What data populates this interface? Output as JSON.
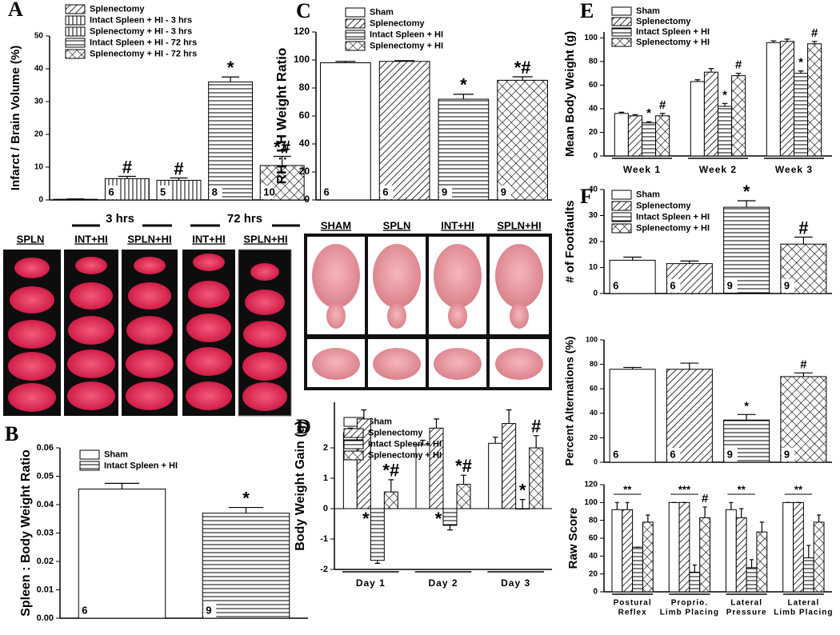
{
  "panel_labels": [
    "A",
    "B",
    "C",
    "D",
    "E",
    "F"
  ],
  "photos": {
    "a_period_labels": [
      "3 hrs",
      "72 hrs"
    ],
    "a_labels": [
      "SPLN",
      "INT+HI",
      "SPLN+HI",
      "INT+HI",
      "SPLN+HI"
    ],
    "c_labels": [
      "SHAM",
      "SPLN",
      "INT+HI",
      "SPLN+HI"
    ]
  },
  "chart_data": [
    {
      "type": "bar",
      "y_label": "Infarct / Brain Volume (%)",
      "ylim": [
        0,
        50
      ],
      "yticks": [
        0,
        10,
        20,
        30,
        40,
        50
      ],
      "legend": true,
      "series": [
        {
          "name": "Splenectomy",
          "color": "#000000",
          "pattern": "diagonal",
          "values": [
            0.2
          ],
          "errors": [
            0.1
          ]
        },
        {
          "name": "Intact Spleen + HI - 3 hrs",
          "color": "#000000",
          "pattern": "vertical",
          "values": [
            6.5
          ],
          "errors": [
            0.7
          ],
          "n_labels": [
            "6"
          ],
          "annotations": [
            "#"
          ]
        },
        {
          "name": "Splenectomy + HI - 3 hrs",
          "color": "#000000",
          "pattern": "vertical",
          "values": [
            6
          ],
          "errors": [
            0.7
          ],
          "n_labels": [
            "5"
          ],
          "annotations": [
            "#"
          ]
        },
        {
          "name": "Intact Spleen + HI - 72 hrs",
          "color": "#000000",
          "pattern": "horizontal",
          "values": [
            36
          ],
          "errors": [
            1.5
          ],
          "n_labels": [
            "8"
          ],
          "annotations": [
            "*"
          ]
        },
        {
          "name": "Splenectomy + HI - 72 hrs",
          "color": "#000000",
          "pattern": "crosshatch",
          "values": [
            10.5
          ],
          "errors": [
            2.8
          ],
          "n_labels": [
            "10"
          ],
          "annotations": [
            "*#"
          ]
        }
      ]
    },
    {
      "type": "bar",
      "y_label": "Spleen : Body Weight Ratio",
      "ylim": [
        0,
        0.06
      ],
      "yticks": [
        {
          "value": 0,
          "label": "0.00"
        },
        {
          "value": 0.01,
          "label": "0.01"
        },
        {
          "value": 0.02,
          "label": "0.02"
        },
        {
          "value": 0.03,
          "label": "0.03"
        },
        {
          "value": 0.04,
          "label": "0.04"
        },
        {
          "value": 0.05,
          "label": "0.05"
        },
        {
          "value": 0.06,
          "label": "0.06"
        }
      ],
      "legend": true,
      "series": [
        {
          "name": "Sham",
          "color": "#000000",
          "pattern": "none",
          "values": [
            0.0455
          ],
          "errors": [
            0.002
          ],
          "n_labels": [
            "6"
          ]
        },
        {
          "name": "Intact Spleen + HI",
          "color": "#000000",
          "pattern": "horizontal",
          "values": [
            0.037
          ],
          "errors": [
            0.002
          ],
          "n_labels": [
            "9"
          ],
          "annotations": [
            "*"
          ]
        }
      ]
    },
    {
      "type": "bar",
      "y_label": "RH : LH Weight Ratio",
      "ylim": [
        0,
        120
      ],
      "yticks": [
        0,
        20,
        40,
        60,
        80,
        100,
        120
      ],
      "legend": true,
      "series": [
        {
          "name": "Sham",
          "color": "#000000",
          "pattern": "none",
          "values": [
            98
          ],
          "errors": [
            1
          ],
          "n_labels": [
            "6"
          ]
        },
        {
          "name": "Splenectomy",
          "color": "#000000",
          "pattern": "diagonal",
          "values": [
            99
          ],
          "errors": [
            0.5
          ],
          "n_labels": [
            "6"
          ]
        },
        {
          "name": "Intact Spleen + HI",
          "color": "#000000",
          "pattern": "horizontal",
          "values": [
            72
          ],
          "errors": [
            3.5
          ],
          "n_labels": [
            "9"
          ],
          "annotations": [
            "*"
          ]
        },
        {
          "name": "Splenectomy + HI",
          "color": "#000000",
          "pattern": "crosshatch",
          "values": [
            85.5
          ],
          "errors": [
            2.5
          ],
          "n_labels": [
            "9"
          ],
          "annotations": [
            "*#"
          ]
        }
      ]
    },
    {
      "type": "bar",
      "y_label": "Body Weight Gain (g)",
      "ylim": [
        -2,
        3.5
      ],
      "yticks": [
        -2,
        -1,
        0,
        1,
        2
      ],
      "legend": true,
      "categories": [
        "Day 1",
        "Day 2",
        "Day 3"
      ],
      "series": [
        {
          "name": "Sham",
          "color": "#000000",
          "pattern": "none",
          "values": [
            2.5,
            2.1,
            2.15
          ],
          "errors": [
            0.15,
            0.15,
            0.2
          ]
        },
        {
          "name": "Splenectomy",
          "color": "#000000",
          "pattern": "diagonal",
          "values": [
            2.95,
            2.65,
            2.8
          ],
          "errors": [
            0.3,
            0.3,
            0.45
          ]
        },
        {
          "name": "Intact Spleen + HI",
          "color": "#000000",
          "pattern": "horizontal",
          "values": [
            -1.7,
            -0.55,
            0.0
          ],
          "errors": [
            0.1,
            0.15,
            0.3
          ],
          "annotations": [
            "*",
            "*",
            "*"
          ]
        },
        {
          "name": "Splenectomy + HI",
          "color": "#000000",
          "pattern": "crosshatch",
          "values": [
            0.55,
            0.8,
            2.0
          ],
          "errors": [
            0.4,
            0.3,
            0.4
          ],
          "annotations": [
            "*#",
            "*#",
            "#"
          ]
        }
      ]
    },
    {
      "type": "bar",
      "y_label": "Mean Body Weight (g)",
      "ylim": [
        0,
        105
      ],
      "yticks": [
        0,
        20,
        40,
        60,
        80,
        100
      ],
      "legend": true,
      "categories": [
        "Week 1",
        "Week 2",
        "Week 3"
      ],
      "series": [
        {
          "name": "Sham",
          "color": "#000000",
          "pattern": "none",
          "values": [
            36,
            63,
            96
          ],
          "errors": [
            1,
            1.5,
            1.5
          ]
        },
        {
          "name": "Splenectomy",
          "color": "#000000",
          "pattern": "diagonal",
          "values": [
            34,
            71,
            97
          ],
          "errors": [
            1,
            3,
            2
          ]
        },
        {
          "name": "Intact Spleen + HI",
          "color": "#000000",
          "pattern": "horizontal",
          "values": [
            28,
            42,
            70
          ],
          "errors": [
            1,
            2.5,
            2
          ],
          "annotations": [
            "*",
            "*",
            "*"
          ]
        },
        {
          "name": "Splenectomy + HI",
          "color": "#000000",
          "pattern": "crosshatch",
          "values": [
            34,
            68,
            95
          ],
          "errors": [
            2,
            2,
            2
          ],
          "annotations": [
            "#",
            "#",
            "#"
          ]
        }
      ]
    },
    {
      "type": "bar",
      "y_label": "# of Footfaults",
      "ylim": [
        0,
        40
      ],
      "yticks": [
        0,
        10,
        20,
        30,
        40
      ],
      "legend": true,
      "series": [
        {
          "name": "Sham",
          "color": "#000000",
          "pattern": "none",
          "values": [
            12.8
          ],
          "errors": [
            1.2
          ],
          "n_labels": [
            "6"
          ]
        },
        {
          "name": "Splenectomy",
          "color": "#000000",
          "pattern": "diagonal",
          "values": [
            11.5
          ],
          "errors": [
            1
          ],
          "n_labels": [
            "6"
          ]
        },
        {
          "name": "Intact Spleen + HI",
          "color": "#000000",
          "pattern": "horizontal",
          "values": [
            33.2
          ],
          "errors": [
            2.5
          ],
          "n_labels": [
            "9"
          ],
          "annotations": [
            "*"
          ]
        },
        {
          "name": "Splenectomy + HI",
          "color": "#000000",
          "pattern": "crosshatch",
          "values": [
            19
          ],
          "errors": [
            2.7
          ],
          "n_labels": [
            "9"
          ],
          "annotations": [
            "#"
          ]
        }
      ]
    },
    {
      "type": "bar",
      "y_label": "Percent Alternations (%)",
      "ylim": [
        0,
        100
      ],
      "yticks": [
        0,
        20,
        40,
        60,
        80,
        100
      ],
      "legend": false,
      "series": [
        {
          "color": "#000000",
          "pattern": "none",
          "values": [
            76
          ],
          "errors": [
            1.5
          ],
          "n_labels": [
            "6"
          ]
        },
        {
          "color": "#000000",
          "pattern": "diagonal",
          "values": [
            76
          ],
          "errors": [
            5
          ],
          "n_labels": [
            "6"
          ]
        },
        {
          "color": "#000000",
          "pattern": "horizontal",
          "values": [
            34.5
          ],
          "errors": [
            4.5
          ],
          "n_labels": [
            "9"
          ],
          "annotations": [
            "*"
          ]
        },
        {
          "color": "#000000",
          "pattern": "crosshatch",
          "values": [
            70
          ],
          "errors": [
            3
          ],
          "n_labels": [
            "9"
          ],
          "annotations": [
            "#"
          ]
        }
      ]
    },
    {
      "type": "bar",
      "y_label": "Raw Score",
      "ylim": [
        0,
        120
      ],
      "yticks": [
        0,
        20,
        40,
        60,
        80,
        100,
        120
      ],
      "legend": false,
      "categories": [
        [
          "Postural",
          "Reflex"
        ],
        [
          "Proprio.",
          "Limb Placing"
        ],
        [
          "Lateral",
          "Pressure"
        ],
        [
          "Lateral",
          "Limb Placing"
        ]
      ],
      "brackets": [
        "**",
        "***",
        "**",
        "**"
      ],
      "series": [
        {
          "color": "#000000",
          "pattern": "none",
          "values": [
            92,
            100,
            92,
            100
          ],
          "errors": [
            8,
            0,
            8,
            0
          ]
        },
        {
          "color": "#000000",
          "pattern": "diagonal",
          "values": [
            92,
            100,
            83,
            100
          ],
          "errors": [
            8,
            0,
            10,
            0
          ]
        },
        {
          "color": "#000000",
          "pattern": "horizontal",
          "values": [
            50,
            22,
            27,
            38
          ],
          "errors": [
            0,
            8,
            9,
            14
          ]
        },
        {
          "color": "#000000",
          "pattern": "crosshatch",
          "values": [
            78,
            83,
            67,
            78
          ],
          "errors": [
            8,
            12,
            11,
            8
          ],
          "annotations": [
            null,
            "#",
            null,
            null
          ]
        }
      ]
    }
  ]
}
